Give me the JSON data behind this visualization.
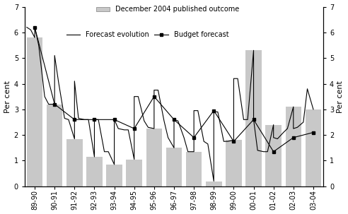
{
  "categories": [
    "89-90",
    "90-91",
    "91-92",
    "92-93",
    "93-94",
    "94-95",
    "95-96",
    "96-97",
    "97-98",
    "98-99",
    "99-00",
    "00-01",
    "01-02",
    "02-03",
    "03-04"
  ],
  "bar_values": [
    5.8,
    3.2,
    1.85,
    1.15,
    0.85,
    1.05,
    2.25,
    1.5,
    1.35,
    0.2,
    1.8,
    5.3,
    2.4,
    3.1,
    3.0
  ],
  "bar_color": "#c8c8c8",
  "forecast_evolution_x": [
    -0.4,
    -0.2,
    0.0,
    0.0,
    0.2,
    0.5,
    0.7,
    1.0,
    1.0,
    1.2,
    1.5,
    1.7,
    2.0,
    2.0,
    2.2,
    2.5,
    2.7,
    3.0,
    3.0,
    3.2,
    3.5,
    3.7,
    4.0,
    4.0,
    4.2,
    4.5,
    4.7,
    5.0,
    5.0,
    5.2,
    5.5,
    5.7,
    6.0,
    6.0,
    6.2,
    6.5,
    6.7,
    7.0,
    7.0,
    7.2,
    7.5,
    7.7,
    8.0,
    8.0,
    8.2,
    8.5,
    8.7,
    9.0,
    9.0,
    9.2,
    9.5,
    9.7,
    10.0,
    10.0,
    10.2,
    10.5,
    10.7,
    11.0,
    11.0,
    11.2,
    11.5,
    11.7,
    12.0,
    12.0,
    12.2,
    12.5,
    12.7,
    13.0,
    13.0,
    13.2,
    13.5,
    13.7,
    14.0
  ],
  "forecast_evolution_y": [
    6.2,
    6.1,
    5.8,
    6.2,
    5.5,
    3.5,
    3.2,
    3.2,
    5.1,
    4.05,
    2.65,
    2.6,
    1.85,
    4.1,
    2.65,
    2.6,
    2.6,
    1.15,
    2.6,
    2.6,
    1.35,
    1.35,
    0.85,
    2.6,
    2.25,
    2.2,
    2.2,
    1.05,
    3.5,
    3.5,
    2.55,
    2.3,
    2.25,
    3.75,
    3.75,
    2.55,
    1.9,
    1.5,
    2.6,
    2.55,
    1.9,
    1.35,
    1.35,
    2.95,
    2.95,
    1.75,
    1.65,
    0.2,
    2.9,
    2.9,
    1.75,
    1.75,
    1.8,
    4.2,
    4.2,
    2.6,
    2.6,
    5.3,
    2.6,
    1.4,
    1.35,
    1.35,
    2.4,
    1.9,
    1.85,
    2.1,
    2.25,
    3.1,
    2.25,
    2.3,
    2.5,
    3.8,
    3.0
  ],
  "budget_forecast_x": [
    0.0,
    1.0,
    2.0,
    3.0,
    4.0,
    5.0,
    6.0,
    7.0,
    8.0,
    9.0,
    10.0,
    11.0,
    12.0,
    13.0,
    14.0
  ],
  "budget_forecast_y": [
    6.2,
    3.2,
    2.6,
    2.6,
    2.6,
    2.25,
    3.5,
    2.6,
    1.9,
    2.95,
    1.75,
    2.6,
    1.35,
    1.9,
    2.1
  ],
  "ylim": [
    0,
    7
  ],
  "yticks": [
    0,
    1,
    2,
    3,
    4,
    5,
    6,
    7
  ],
  "ylabel_left": "Per cent",
  "ylabel_right": "Per cent",
  "line_color": "#000000",
  "legend_bar_label": "December 2004 published outcome",
  "legend_line_label": "Forecast evolution",
  "legend_budget_label": "Budget forecast"
}
